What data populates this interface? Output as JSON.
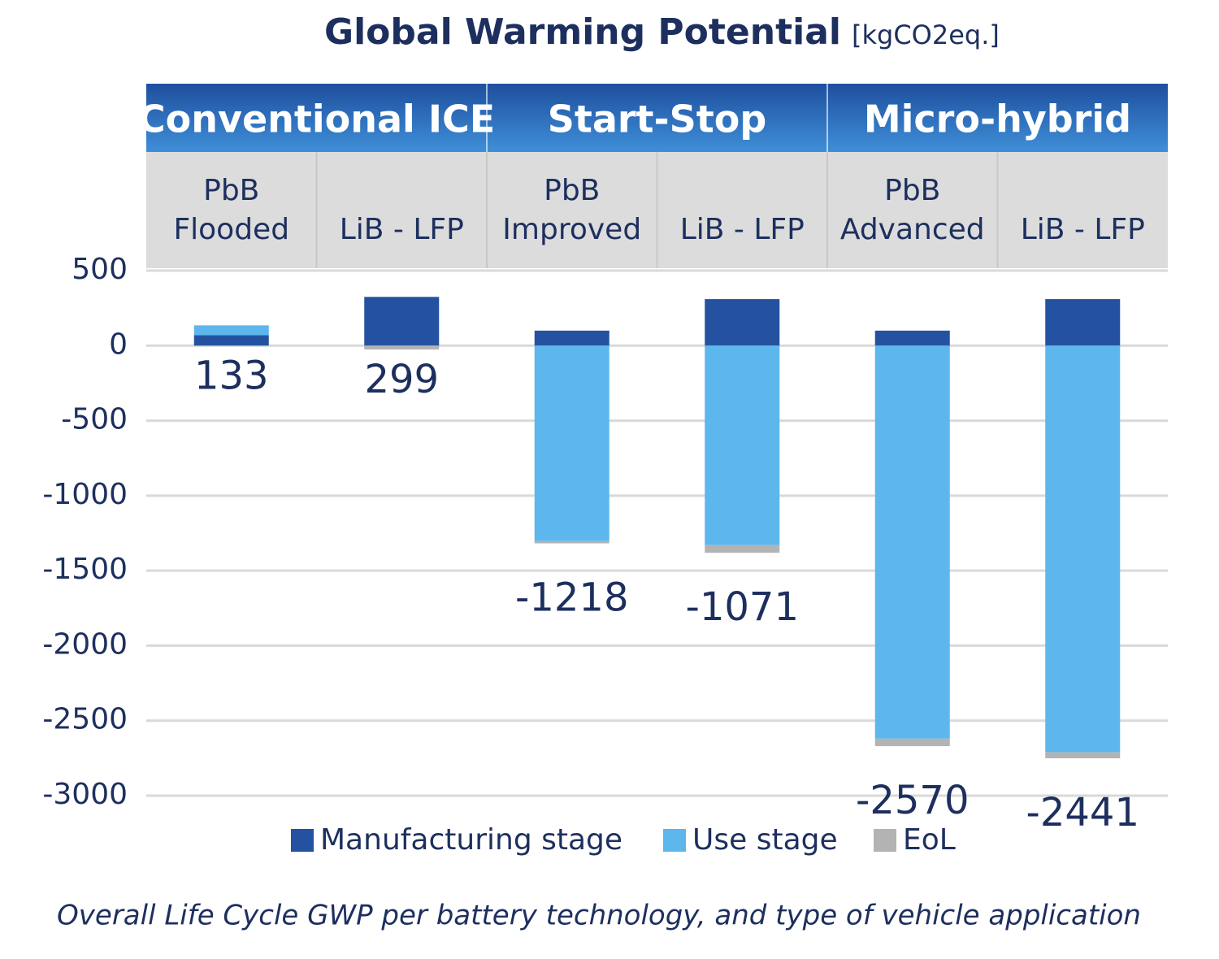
{
  "chart_data": {
    "type": "stacked_bar",
    "title": "Global Warming Potential",
    "title_unit": "[kgCO2eq.]",
    "caption": "Overall Life Cycle GWP per battery technology, and type of vehicle application",
    "groups": [
      "Conventional ICE",
      "Start-Stop",
      "Micro-hybrid"
    ],
    "categories": [
      [
        "PbB",
        "Flooded"
      ],
      [
        "LiB - LFP"
      ],
      [
        "PbB",
        "Improved"
      ],
      [
        "LiB - LFP"
      ],
      [
        "PbB",
        "Advanced"
      ],
      [
        "LiB - LFP"
      ]
    ],
    "series": [
      {
        "name": "Manufacturing stage",
        "color": "#2452a0",
        "values": [
          70,
          325,
          100,
          310,
          100,
          310
        ]
      },
      {
        "name": "Use stage",
        "color": "#5db7ec",
        "values": [
          65,
          0,
          -1303,
          -1330,
          -2620,
          -2711
        ]
      },
      {
        "name": "EoL",
        "color": "#b3b3b3",
        "values": [
          -2,
          -26,
          -15,
          -51,
          -50,
          -40
        ]
      }
    ],
    "totals": [
      133,
      299,
      -1218,
      -1071,
      -2570,
      -2441
    ],
    "ylim": [
      -3000,
      500
    ],
    "yticks": [
      500,
      0,
      -500,
      -1000,
      -1500,
      -2000,
      -2500,
      -3000
    ],
    "grid": true
  }
}
